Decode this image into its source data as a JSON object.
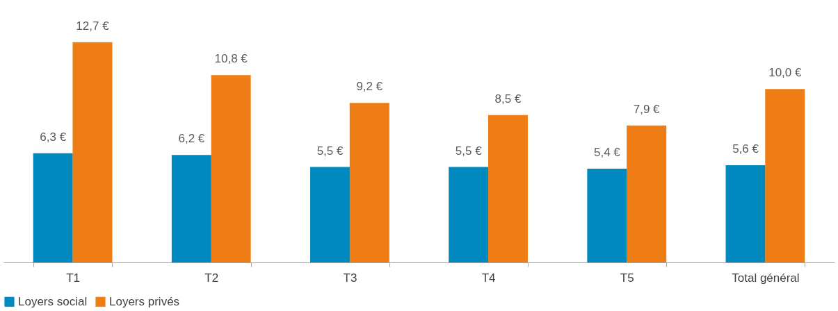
{
  "chart_data": {
    "type": "bar",
    "categories": [
      "T1",
      "T2",
      "T3",
      "T4",
      "T5",
      "Total général"
    ],
    "series": [
      {
        "name": "Loyers social",
        "color": "#0089bf",
        "values": [
          6.3,
          6.2,
          5.5,
          5.5,
          5.4,
          5.6
        ],
        "value_labels": [
          "6,3 €",
          "6,2 €",
          "5,5 €",
          "5,5 €",
          "5,4 €",
          "5,6 €"
        ]
      },
      {
        "name": "Loyers privés",
        "color": "#ed7d14",
        "values": [
          12.7,
          10.8,
          9.2,
          8.5,
          7.9,
          10.0
        ],
        "value_labels": [
          "12,7 €",
          "10,8 €",
          "9,2 €",
          "8,5 €",
          "7,9 €",
          "10,0 €"
        ]
      }
    ],
    "legend": "bottom",
    "grid": false
  }
}
